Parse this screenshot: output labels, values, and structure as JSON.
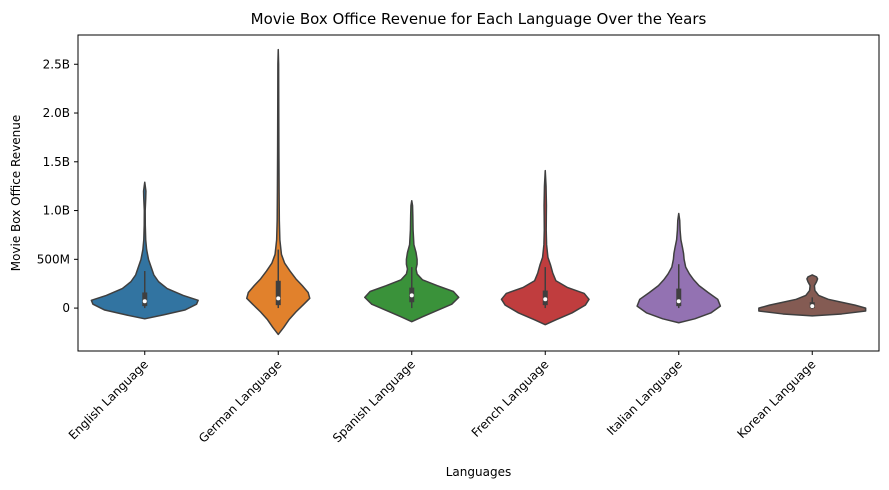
{
  "chart_data": {
    "type": "violin",
    "title": "Movie Box Office Revenue for Each Language Over the Years",
    "xlabel": "Languages",
    "ylabel": "Movie Box Office Revenue",
    "ylim": [
      -440000000,
      2800000000
    ],
    "yticks": [
      {
        "value": 0,
        "label": "0"
      },
      {
        "value": 500000000,
        "label": "500M"
      },
      {
        "value": 1000000000,
        "label": "1.0B"
      },
      {
        "value": 1500000000,
        "label": "1.5B"
      },
      {
        "value": 2000000000,
        "label": "2.0B"
      },
      {
        "value": 2500000000,
        "label": "2.5B"
      }
    ],
    "grid": false,
    "legend": "none",
    "categories": [
      "English Language",
      "German Language",
      "Spanish Language",
      "French Language",
      "Italian Language",
      "Korean Language"
    ],
    "colors": [
      "#3274a1",
      "#e1812c",
      "#3a923a",
      "#c03d3e",
      "#9372b2",
      "#845b53"
    ],
    "violins": [
      {
        "min": -110000000,
        "max": 1290000000,
        "q1": 20000000,
        "median": 70000000,
        "q3": 160000000,
        "whisker_low": 0,
        "whisker_high": 380000000,
        "profile": [
          [
            -110000000,
            0.0
          ],
          [
            -70000000,
            0.35
          ],
          [
            -20000000,
            0.75
          ],
          [
            40000000,
            0.97
          ],
          [
            80000000,
            1.0
          ],
          [
            130000000,
            0.72
          ],
          [
            200000000,
            0.42
          ],
          [
            270000000,
            0.26
          ],
          [
            340000000,
            0.17
          ],
          [
            420000000,
            0.12
          ],
          [
            500000000,
            0.07
          ],
          [
            600000000,
            0.035
          ],
          [
            700000000,
            0.018
          ],
          [
            850000000,
            0.01
          ],
          [
            1000000000,
            0.008
          ],
          [
            1120000000,
            0.018
          ],
          [
            1200000000,
            0.022
          ],
          [
            1290000000,
            0.0
          ]
        ]
      },
      {
        "min": -270000000,
        "max": 2650000000,
        "q1": 30000000,
        "median": 100000000,
        "q3": 280000000,
        "whisker_low": 0,
        "whisker_high": 600000000,
        "profile": [
          [
            -270000000,
            0.0
          ],
          [
            -200000000,
            0.1
          ],
          [
            -120000000,
            0.2
          ],
          [
            -40000000,
            0.33
          ],
          [
            40000000,
            0.48
          ],
          [
            100000000,
            0.59
          ],
          [
            160000000,
            0.56
          ],
          [
            230000000,
            0.45
          ],
          [
            300000000,
            0.33
          ],
          [
            380000000,
            0.22
          ],
          [
            460000000,
            0.12
          ],
          [
            550000000,
            0.06
          ],
          [
            700000000,
            0.03
          ],
          [
            900000000,
            0.02
          ],
          [
            1200000000,
            0.016
          ],
          [
            1600000000,
            0.012
          ],
          [
            2100000000,
            0.009
          ],
          [
            2500000000,
            0.007
          ],
          [
            2650000000,
            0.0
          ]
        ]
      },
      {
        "min": -140000000,
        "max": 1100000000,
        "q1": 60000000,
        "median": 130000000,
        "q3": 210000000,
        "whisker_low": 0,
        "whisker_high": 420000000,
        "profile": [
          [
            -140000000,
            0.0
          ],
          [
            -90000000,
            0.2
          ],
          [
            -30000000,
            0.45
          ],
          [
            40000000,
            0.75
          ],
          [
            110000000,
            0.88
          ],
          [
            170000000,
            0.78
          ],
          [
            230000000,
            0.48
          ],
          [
            290000000,
            0.2
          ],
          [
            350000000,
            0.1
          ],
          [
            400000000,
            0.08
          ],
          [
            450000000,
            0.1
          ],
          [
            500000000,
            0.1
          ],
          [
            570000000,
            0.08
          ],
          [
            650000000,
            0.04
          ],
          [
            800000000,
            0.025
          ],
          [
            950000000,
            0.02
          ],
          [
            1050000000,
            0.015
          ],
          [
            1100000000,
            0.0
          ]
        ]
      },
      {
        "min": -170000000,
        "max": 1410000000,
        "q1": 30000000,
        "median": 90000000,
        "q3": 180000000,
        "whisker_low": 0,
        "whisker_high": 420000000,
        "profile": [
          [
            -170000000,
            0.0
          ],
          [
            -120000000,
            0.2
          ],
          [
            -50000000,
            0.5
          ],
          [
            30000000,
            0.75
          ],
          [
            90000000,
            0.82
          ],
          [
            150000000,
            0.73
          ],
          [
            210000000,
            0.42
          ],
          [
            280000000,
            0.2
          ],
          [
            360000000,
            0.14
          ],
          [
            440000000,
            0.1
          ],
          [
            520000000,
            0.05
          ],
          [
            650000000,
            0.025
          ],
          [
            800000000,
            0.018
          ],
          [
            950000000,
            0.02
          ],
          [
            1050000000,
            0.022
          ],
          [
            1250000000,
            0.015
          ],
          [
            1410000000,
            0.0
          ]
        ]
      },
      {
        "min": -150000000,
        "max": 970000000,
        "q1": 20000000,
        "median": 70000000,
        "q3": 200000000,
        "whisker_low": 0,
        "whisker_high": 450000000,
        "profile": [
          [
            -150000000,
            0.0
          ],
          [
            -110000000,
            0.3
          ],
          [
            -50000000,
            0.6
          ],
          [
            20000000,
            0.78
          ],
          [
            90000000,
            0.73
          ],
          [
            160000000,
            0.55
          ],
          [
            230000000,
            0.38
          ],
          [
            290000000,
            0.28
          ],
          [
            350000000,
            0.2
          ],
          [
            420000000,
            0.13
          ],
          [
            500000000,
            0.1
          ],
          [
            560000000,
            0.09
          ],
          [
            620000000,
            0.07
          ],
          [
            700000000,
            0.04
          ],
          [
            800000000,
            0.025
          ],
          [
            900000000,
            0.018
          ],
          [
            970000000,
            0.0
          ]
        ]
      },
      {
        "min": -80000000,
        "max": 340000000,
        "q1": 0,
        "median": 20000000,
        "q3": 60000000,
        "whisker_low": -10000000,
        "whisker_high": 110000000,
        "profile": [
          [
            -80000000,
            0.0
          ],
          [
            -60000000,
            0.55
          ],
          [
            -30000000,
            1.0
          ],
          [
            0,
            1.0
          ],
          [
            30000000,
            0.8
          ],
          [
            60000000,
            0.55
          ],
          [
            90000000,
            0.3
          ],
          [
            130000000,
            0.12
          ],
          [
            180000000,
            0.05
          ],
          [
            230000000,
            0.04
          ],
          [
            270000000,
            0.08
          ],
          [
            300000000,
            0.1
          ],
          [
            320000000,
            0.08
          ],
          [
            340000000,
            0.0
          ]
        ]
      }
    ]
  }
}
